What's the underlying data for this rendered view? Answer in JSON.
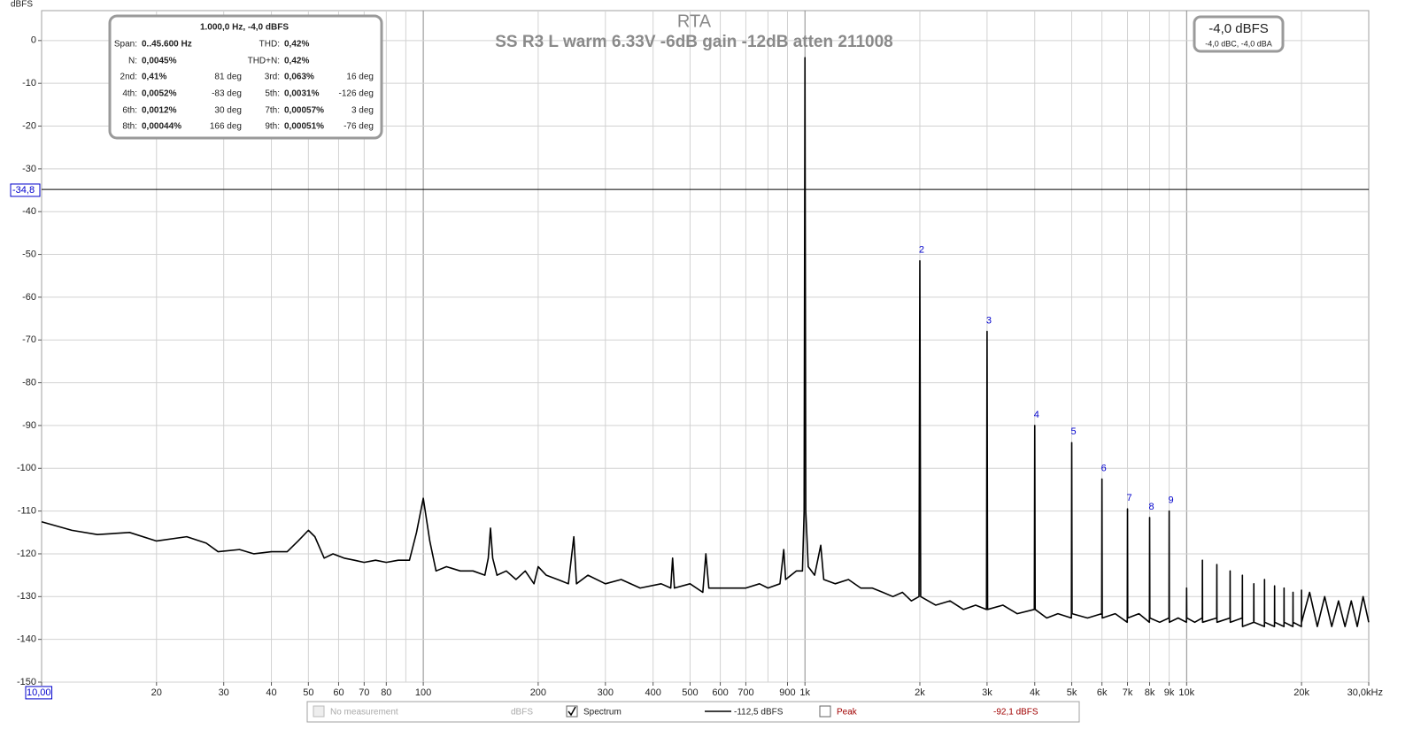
{
  "chart_data": {
    "type": "line",
    "title": "RTA",
    "subtitle": "SS R3 L warm  6.33V -6dB gain -12dB atten 211008",
    "y_label": "dBFS",
    "log_x": true,
    "grid": true,
    "xlim": [
      10,
      30000
    ],
    "ylim": [
      -150,
      7
    ],
    "yticks": [
      0,
      -10,
      -20,
      -30,
      -40,
      -50,
      -60,
      -70,
      -80,
      -90,
      -100,
      -110,
      -120,
      -130,
      -140,
      -150
    ],
    "xticks": [
      {
        "value": 10,
        "label": "10,00"
      },
      20,
      30,
      40,
      50,
      60,
      70,
      80,
      100,
      200,
      300,
      400,
      500,
      600,
      700,
      {
        "value": 900,
        "label": "900"
      },
      {
        "value": 1000,
        "label": "1k"
      },
      {
        "value": 2000,
        "label": "2k"
      },
      {
        "value": 3000,
        "label": "3k"
      },
      {
        "value": 4000,
        "label": "4k"
      },
      {
        "value": 5000,
        "label": "5k"
      },
      {
        "value": 6000,
        "label": "6k"
      },
      {
        "value": 7000,
        "label": "7k"
      },
      {
        "value": 8000,
        "label": "8k"
      },
      {
        "value": 9000,
        "label": "9k"
      },
      {
        "value": 10000,
        "label": "10k"
      },
      {
        "value": 20000,
        "label": "20k"
      },
      {
        "value": 30000,
        "label": "30,0kHz"
      }
    ],
    "cursor": {
      "value": -34.8,
      "label": "-34,8"
    },
    "series": [
      {
        "color": "#000000",
        "x": [
          10,
          12,
          14,
          17,
          20,
          24,
          27,
          29,
          33,
          36,
          40,
          44,
          47,
          50,
          52,
          55,
          58,
          62,
          66,
          70,
          75,
          80,
          86,
          92,
          96,
          100,
          104,
          108,
          115,
          125,
          135,
          145,
          148,
          150,
          152,
          156,
          165,
          175,
          185,
          195,
          200,
          210,
          225,
          240,
          248,
          252,
          270,
          300,
          330,
          370,
          420,
          445,
          450,
          455,
          500,
          540,
          550,
          560,
          620,
          700,
          760,
          800,
          860,
          880,
          890,
          950,
          985,
          995,
          1000,
          1005,
          1020,
          1060,
          1100,
          1120,
          1200,
          1300,
          1400,
          1500,
          1600,
          1700,
          1800,
          1900,
          1990,
          2000,
          2010,
          2200,
          2400,
          2600,
          2800,
          2990,
          3000,
          3010,
          3300,
          3600,
          3990,
          4000,
          4010,
          4300,
          4600,
          4990,
          5000,
          5010,
          5500,
          5990,
          6000,
          6010,
          6500,
          6990,
          7000,
          7010,
          7500,
          7990,
          8000,
          8010,
          8500,
          8990,
          9000,
          9010,
          9500,
          9990,
          10000,
          10010,
          10500,
          10990,
          11000,
          11010,
          11990,
          12000,
          12010,
          12990,
          13000,
          13010,
          13990,
          14000,
          14010,
          14990,
          15000,
          15010,
          15990,
          16000,
          16010,
          16990,
          17000,
          17010,
          17990,
          18000,
          18010,
          18990,
          19000,
          19010,
          19990,
          20000,
          20010,
          21000,
          22000,
          23000,
          24000,
          25000,
          26000,
          27000,
          28000,
          29000,
          30000
        ],
        "values": [
          -112.5,
          -114.5,
          -115.5,
          -115,
          -117,
          -116,
          -117.5,
          -119.5,
          -119,
          -120,
          -119.5,
          -119.5,
          -117,
          -114.5,
          -116,
          -121,
          -120,
          -121,
          -121.5,
          -122,
          -121.5,
          -122,
          -121.5,
          -121.5,
          -115,
          -107,
          -117,
          -124,
          -123,
          -124,
          -124,
          -125,
          -121,
          -114,
          -121,
          -125,
          -124,
          -126,
          -124,
          -127,
          -123,
          -125,
          -126,
          -127,
          -116,
          -127,
          -125,
          -127,
          -126,
          -128,
          -127,
          -128,
          -121,
          -128,
          -127,
          -129,
          -120,
          -128,
          -128,
          -128,
          -127,
          -128,
          -127,
          -119,
          -126,
          -124,
          -124,
          -110,
          -4,
          -110,
          -123,
          -125,
          -118,
          -126,
          -127,
          -126,
          -128,
          -128,
          -129,
          -130,
          -129,
          -131,
          -130,
          -51.5,
          -130,
          -132,
          -131,
          -133,
          -132,
          -133,
          -68,
          -133,
          -132,
          -134,
          -133,
          -90,
          -133,
          -135,
          -134,
          -135,
          -94,
          -134,
          -135,
          -134,
          -102.5,
          -135,
          -134,
          -136,
          -109.5,
          -135,
          -134,
          -136,
          -111.5,
          -135,
          -136,
          -135,
          -110,
          -136,
          -135,
          -136,
          -128,
          -135,
          -136,
          -135,
          -121.5,
          -136,
          -135,
          -122.5,
          -136,
          -135,
          -124,
          -136,
          -135,
          -125,
          -137,
          -136,
          -127,
          -136,
          -137,
          -126,
          -136,
          -137,
          -127.5,
          -136,
          -137,
          -128,
          -136,
          -137,
          -129,
          -136,
          -137,
          -128.5,
          -136,
          -129,
          -137,
          -130,
          -137,
          -131,
          -137,
          -131,
          -137,
          -130,
          -136
        ]
      }
    ],
    "harmonic_markers": {
      "color": "#0000cc",
      "labels": [
        "2",
        "3",
        "4",
        "5",
        "6",
        "7",
        "8",
        "9"
      ],
      "x": [
        2000,
        3000,
        4000,
        5000,
        6000,
        7000,
        8000,
        9000
      ]
    },
    "info_box": {
      "header": "1.000,0 Hz, -4,0 dBFS",
      "rows": [
        [
          "Span:",
          "0..45.600 Hz",
          null,
          "THD:",
          "0,42%",
          null
        ],
        [
          "N:",
          "0,0045%",
          null,
          "THD+N:",
          "0,42%",
          null
        ],
        [
          "2nd:",
          "0,41%",
          "81 deg",
          "3rd:",
          "0,063%",
          "16 deg"
        ],
        [
          "4th:",
          "0,0052%",
          "-83 deg",
          "5th:",
          "0,0031%",
          "-126 deg"
        ],
        [
          "6th:",
          "0,0012%",
          "30 deg",
          "7th:",
          "0,00057%",
          "3 deg"
        ],
        [
          "8th:",
          "0,00044%",
          "166 deg",
          "9th:",
          "0,00051%",
          "-76 deg"
        ]
      ]
    },
    "readout": {
      "main": "-4,0 dBFS",
      "sub": "-4,0 dBC, -4,0 dBA"
    },
    "legend_items": [
      {
        "name": "No measurement",
        "reading": "dBFS",
        "checked": false,
        "enabled": false
      },
      {
        "name": "Spectrum",
        "reading": "-112,5 dBFS",
        "checked": true,
        "enabled": true
      },
      {
        "name": "Peak",
        "reading": "-92,1 dBFS",
        "checked": false,
        "enabled": true
      }
    ]
  }
}
